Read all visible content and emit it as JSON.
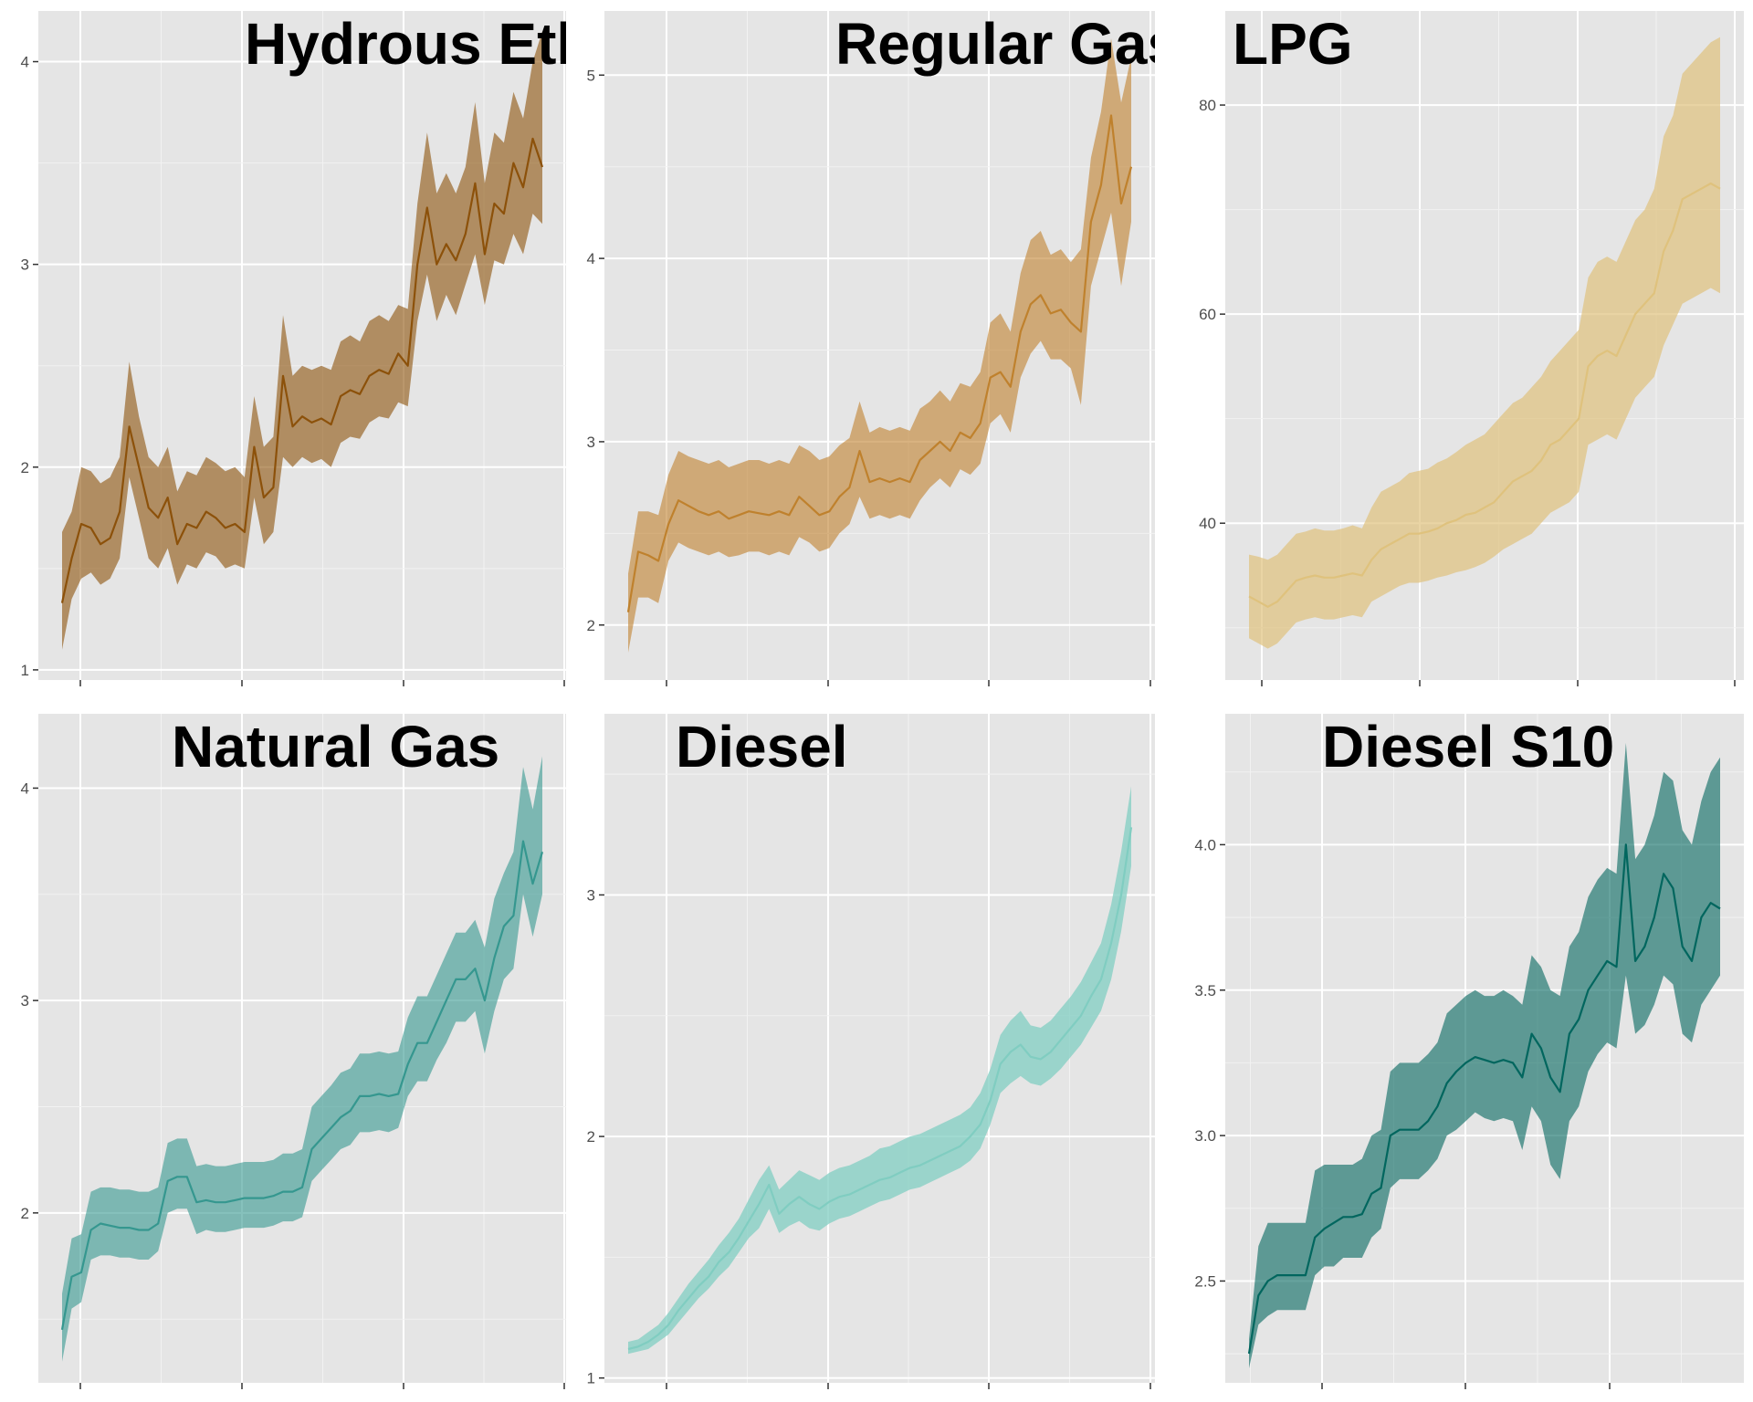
{
  "chart_data": [
    {
      "type": "area",
      "title": "Hydrous Ethanol",
      "color": "#8c510a",
      "fill_opacity": 0.6,
      "x": [
        0,
        0.02,
        0.04,
        0.06,
        0.08,
        0.1,
        0.12,
        0.14,
        0.16,
        0.18,
        0.2,
        0.22,
        0.24,
        0.26,
        0.28,
        0.3,
        0.32,
        0.34,
        0.36,
        0.38,
        0.4,
        0.42,
        0.44,
        0.46,
        0.48,
        0.5,
        0.52,
        0.54,
        0.56,
        0.58,
        0.6,
        0.62,
        0.64,
        0.66,
        0.68,
        0.7,
        0.72,
        0.74,
        0.76,
        0.78,
        0.8,
        0.82,
        0.84,
        0.86,
        0.88,
        0.9,
        0.92,
        0.94,
        0.96,
        0.98,
        1.0
      ],
      "y": [
        1.33,
        1.55,
        1.72,
        1.7,
        1.62,
        1.65,
        1.78,
        2.2,
        2.0,
        1.8,
        1.75,
        1.85,
        1.62,
        1.72,
        1.7,
        1.78,
        1.75,
        1.7,
        1.72,
        1.68,
        2.1,
        1.85,
        1.9,
        2.45,
        2.2,
        2.25,
        2.22,
        2.24,
        2.21,
        2.35,
        2.38,
        2.36,
        2.45,
        2.48,
        2.46,
        2.56,
        2.5,
        3.0,
        3.28,
        3.0,
        3.1,
        3.02,
        3.15,
        3.4,
        3.05,
        3.3,
        3.25,
        3.5,
        3.38,
        3.62,
        3.48
      ],
      "lower": [
        1.1,
        1.35,
        1.45,
        1.48,
        1.42,
        1.45,
        1.55,
        1.95,
        1.75,
        1.55,
        1.5,
        1.6,
        1.42,
        1.52,
        1.5,
        1.58,
        1.56,
        1.5,
        1.52,
        1.5,
        1.85,
        1.62,
        1.68,
        2.05,
        2.0,
        2.05,
        2.02,
        2.04,
        2.0,
        2.12,
        2.15,
        2.14,
        2.22,
        2.25,
        2.24,
        2.32,
        2.3,
        2.72,
        2.95,
        2.72,
        2.85,
        2.75,
        2.9,
        3.05,
        2.8,
        3.02,
        3.0,
        3.15,
        3.05,
        3.25,
        3.2
      ],
      "upper": [
        1.68,
        1.78,
        2.0,
        1.98,
        1.92,
        1.95,
        2.05,
        2.52,
        2.25,
        2.05,
        2.0,
        2.1,
        1.88,
        1.98,
        1.96,
        2.05,
        2.02,
        1.98,
        2.0,
        1.95,
        2.35,
        2.1,
        2.15,
        2.75,
        2.45,
        2.5,
        2.48,
        2.5,
        2.48,
        2.62,
        2.65,
        2.62,
        2.72,
        2.75,
        2.72,
        2.8,
        2.78,
        3.3,
        3.65,
        3.35,
        3.45,
        3.35,
        3.48,
        3.8,
        3.4,
        3.65,
        3.6,
        3.85,
        3.72,
        4.0,
        4.15
      ],
      "yticks": [
        1,
        2,
        3,
        4
      ],
      "ylim": [
        0.95,
        4.25
      ],
      "x_tick_count": 4,
      "grid": true
    },
    {
      "type": "area",
      "title": "Regular Gasoline",
      "color": "#bf812d",
      "fill_opacity": 0.6,
      "x": [
        0,
        0.02,
        0.04,
        0.06,
        0.08,
        0.1,
        0.12,
        0.14,
        0.16,
        0.18,
        0.2,
        0.22,
        0.24,
        0.26,
        0.28,
        0.3,
        0.32,
        0.34,
        0.36,
        0.38,
        0.4,
        0.42,
        0.44,
        0.46,
        0.48,
        0.5,
        0.52,
        0.54,
        0.56,
        0.58,
        0.6,
        0.62,
        0.64,
        0.66,
        0.68,
        0.7,
        0.72,
        0.74,
        0.76,
        0.78,
        0.8,
        0.82,
        0.84,
        0.86,
        0.88,
        0.9,
        0.92,
        0.94,
        0.96,
        0.98,
        1.0
      ],
      "y": [
        2.07,
        2.4,
        2.38,
        2.35,
        2.55,
        2.68,
        2.65,
        2.62,
        2.6,
        2.62,
        2.58,
        2.6,
        2.62,
        2.61,
        2.6,
        2.62,
        2.6,
        2.7,
        2.65,
        2.6,
        2.62,
        2.7,
        2.75,
        2.95,
        2.78,
        2.8,
        2.78,
        2.8,
        2.78,
        2.9,
        2.95,
        3.0,
        2.95,
        3.05,
        3.02,
        3.1,
        3.35,
        3.38,
        3.3,
        3.6,
        3.75,
        3.8,
        3.7,
        3.72,
        3.65,
        3.6,
        4.2,
        4.4,
        4.78,
        4.3,
        4.5
      ],
      "lower": [
        1.85,
        2.15,
        2.15,
        2.12,
        2.35,
        2.45,
        2.42,
        2.4,
        2.38,
        2.4,
        2.37,
        2.38,
        2.4,
        2.4,
        2.38,
        2.4,
        2.38,
        2.48,
        2.45,
        2.4,
        2.42,
        2.5,
        2.55,
        2.7,
        2.58,
        2.6,
        2.58,
        2.6,
        2.58,
        2.68,
        2.75,
        2.8,
        2.75,
        2.85,
        2.82,
        2.88,
        3.1,
        3.15,
        3.05,
        3.35,
        3.48,
        3.55,
        3.45,
        3.45,
        3.4,
        3.2,
        3.85,
        4.05,
        4.25,
        3.85,
        4.2
      ],
      "upper": [
        2.28,
        2.62,
        2.62,
        2.6,
        2.82,
        2.95,
        2.92,
        2.9,
        2.88,
        2.9,
        2.86,
        2.88,
        2.9,
        2.9,
        2.88,
        2.9,
        2.88,
        2.98,
        2.95,
        2.9,
        2.92,
        2.98,
        3.02,
        3.22,
        3.05,
        3.08,
        3.06,
        3.08,
        3.06,
        3.18,
        3.22,
        3.28,
        3.22,
        3.32,
        3.3,
        3.38,
        3.65,
        3.7,
        3.6,
        3.92,
        4.1,
        4.15,
        4.02,
        4.05,
        3.98,
        4.05,
        4.55,
        4.8,
        5.2,
        4.85,
        5.1
      ],
      "yticks": [
        2,
        3,
        4,
        5
      ],
      "ylim": [
        1.7,
        5.35
      ],
      "x_tick_count": 4,
      "grid": true
    },
    {
      "type": "area",
      "title": "LPG",
      "color": "#dfc27d",
      "fill_opacity": 0.7,
      "x": [
        0,
        0.02,
        0.04,
        0.06,
        0.08,
        0.1,
        0.12,
        0.14,
        0.16,
        0.18,
        0.2,
        0.22,
        0.24,
        0.26,
        0.28,
        0.3,
        0.32,
        0.34,
        0.36,
        0.38,
        0.4,
        0.42,
        0.44,
        0.46,
        0.48,
        0.5,
        0.52,
        0.54,
        0.56,
        0.58,
        0.6,
        0.62,
        0.64,
        0.66,
        0.68,
        0.7,
        0.72,
        0.74,
        0.76,
        0.78,
        0.8,
        0.82,
        0.84,
        0.86,
        0.88,
        0.9,
        0.92,
        0.94,
        0.96,
        0.98,
        1.0
      ],
      "y": [
        33.0,
        32.5,
        32.0,
        32.5,
        33.5,
        34.5,
        34.8,
        35.0,
        34.8,
        34.8,
        35.0,
        35.2,
        35.0,
        36.5,
        37.5,
        38.0,
        38.5,
        39.0,
        39.0,
        39.2,
        39.5,
        40.0,
        40.3,
        40.8,
        41.0,
        41.5,
        42.0,
        43.0,
        44.0,
        44.5,
        45.0,
        46.0,
        47.5,
        48.0,
        49.0,
        50.0,
        55.0,
        56.0,
        56.5,
        56.0,
        58.0,
        60.0,
        61.0,
        62.0,
        66.0,
        68.0,
        71.0,
        71.5,
        72.0,
        72.5,
        72.0
      ],
      "lower": [
        29.0,
        28.5,
        28.0,
        28.5,
        29.5,
        30.5,
        30.8,
        31.0,
        30.8,
        30.8,
        31.0,
        31.2,
        31.0,
        32.5,
        33.0,
        33.5,
        34.0,
        34.3,
        34.3,
        34.5,
        34.8,
        35.0,
        35.3,
        35.5,
        35.8,
        36.2,
        36.8,
        37.5,
        38.0,
        38.5,
        39.0,
        40.0,
        41.0,
        41.5,
        42.0,
        43.0,
        47.5,
        48.0,
        48.5,
        48.0,
        50.0,
        52.0,
        53.0,
        54.0,
        57.0,
        59.0,
        61.0,
        61.5,
        62.0,
        62.5,
        62.0
      ],
      "upper": [
        37.0,
        36.8,
        36.5,
        37.0,
        38.0,
        39.0,
        39.2,
        39.5,
        39.3,
        39.3,
        39.5,
        39.8,
        39.5,
        41.5,
        43.0,
        43.5,
        44.0,
        44.8,
        45.0,
        45.2,
        45.8,
        46.2,
        46.8,
        47.5,
        48.0,
        48.5,
        49.5,
        50.5,
        51.5,
        52.0,
        53.0,
        54.0,
        55.5,
        56.5,
        57.5,
        58.5,
        63.5,
        65.0,
        65.5,
        65.0,
        67.0,
        69.0,
        70.0,
        72.0,
        77.0,
        79.0,
        83.0,
        84.0,
        85.0,
        86.0,
        86.5
      ],
      "yticks": [
        40,
        60,
        80
      ],
      "ylim": [
        25.0,
        89.0
      ],
      "x_tick_count": 4,
      "grid": true
    },
    {
      "type": "area",
      "title": "Natural Gas",
      "color": "#35978f",
      "fill_opacity": 0.6,
      "x": [
        0,
        0.02,
        0.04,
        0.06,
        0.08,
        0.1,
        0.12,
        0.14,
        0.16,
        0.18,
        0.2,
        0.22,
        0.24,
        0.26,
        0.28,
        0.3,
        0.32,
        0.34,
        0.36,
        0.38,
        0.4,
        0.42,
        0.44,
        0.46,
        0.48,
        0.5,
        0.52,
        0.54,
        0.56,
        0.58,
        0.6,
        0.62,
        0.64,
        0.66,
        0.68,
        0.7,
        0.72,
        0.74,
        0.76,
        0.78,
        0.8,
        0.82,
        0.84,
        0.86,
        0.88,
        0.9,
        0.92,
        0.94,
        0.96,
        0.98,
        1.0
      ],
      "y": [
        1.45,
        1.7,
        1.72,
        1.92,
        1.95,
        1.94,
        1.93,
        1.93,
        1.92,
        1.92,
        1.95,
        2.15,
        2.17,
        2.17,
        2.05,
        2.06,
        2.05,
        2.05,
        2.06,
        2.07,
        2.07,
        2.07,
        2.08,
        2.1,
        2.1,
        2.12,
        2.3,
        2.35,
        2.4,
        2.45,
        2.48,
        2.55,
        2.55,
        2.56,
        2.55,
        2.56,
        2.7,
        2.8,
        2.8,
        2.9,
        3.0,
        3.1,
        3.1,
        3.15,
        3.0,
        3.2,
        3.35,
        3.4,
        3.75,
        3.55,
        3.7
      ],
      "lower": [
        1.3,
        1.55,
        1.58,
        1.78,
        1.8,
        1.8,
        1.79,
        1.79,
        1.78,
        1.78,
        1.82,
        2.0,
        2.02,
        2.02,
        1.9,
        1.92,
        1.91,
        1.91,
        1.92,
        1.93,
        1.93,
        1.93,
        1.94,
        1.96,
        1.96,
        1.98,
        2.15,
        2.2,
        2.25,
        2.3,
        2.32,
        2.38,
        2.38,
        2.39,
        2.38,
        2.4,
        2.55,
        2.62,
        2.62,
        2.72,
        2.8,
        2.9,
        2.9,
        2.95,
        2.75,
        2.95,
        3.1,
        3.15,
        3.5,
        3.3,
        3.5
      ],
      "upper": [
        1.62,
        1.88,
        1.9,
        2.1,
        2.12,
        2.12,
        2.11,
        2.11,
        2.1,
        2.1,
        2.12,
        2.33,
        2.35,
        2.35,
        2.22,
        2.23,
        2.22,
        2.22,
        2.23,
        2.24,
        2.24,
        2.24,
        2.25,
        2.28,
        2.28,
        2.3,
        2.5,
        2.55,
        2.6,
        2.66,
        2.68,
        2.75,
        2.75,
        2.76,
        2.75,
        2.76,
        2.92,
        3.02,
        3.02,
        3.12,
        3.22,
        3.32,
        3.32,
        3.38,
        3.25,
        3.48,
        3.6,
        3.7,
        4.1,
        3.9,
        4.15
      ],
      "yticks": [
        2,
        3,
        4
      ],
      "ylim": [
        1.2,
        4.35
      ],
      "x_tick_count": 4,
      "grid": true
    },
    {
      "type": "area",
      "title": "Diesel",
      "color": "#80cdc1",
      "fill_opacity": 0.75,
      "x": [
        0,
        0.02,
        0.04,
        0.06,
        0.08,
        0.1,
        0.12,
        0.14,
        0.16,
        0.18,
        0.2,
        0.22,
        0.24,
        0.26,
        0.28,
        0.3,
        0.32,
        0.34,
        0.36,
        0.38,
        0.4,
        0.42,
        0.44,
        0.46,
        0.48,
        0.5,
        0.52,
        0.54,
        0.56,
        0.58,
        0.6,
        0.62,
        0.64,
        0.66,
        0.68,
        0.7,
        0.72,
        0.74,
        0.76,
        0.78,
        0.8,
        0.82,
        0.84,
        0.86,
        0.88,
        0.9,
        0.92,
        0.94,
        0.96,
        0.98,
        1.0
      ],
      "y": [
        1.12,
        1.13,
        1.15,
        1.18,
        1.22,
        1.28,
        1.33,
        1.38,
        1.42,
        1.48,
        1.52,
        1.58,
        1.65,
        1.72,
        1.8,
        1.68,
        1.72,
        1.75,
        1.72,
        1.7,
        1.73,
        1.75,
        1.76,
        1.78,
        1.8,
        1.82,
        1.83,
        1.85,
        1.87,
        1.88,
        1.9,
        1.92,
        1.94,
        1.96,
        2.0,
        2.05,
        2.15,
        2.3,
        2.35,
        2.38,
        2.33,
        2.32,
        2.35,
        2.4,
        2.45,
        2.5,
        2.58,
        2.65,
        2.8,
        3.0,
        3.28
      ],
      "lower": [
        1.1,
        1.11,
        1.12,
        1.15,
        1.18,
        1.23,
        1.28,
        1.33,
        1.37,
        1.42,
        1.46,
        1.52,
        1.58,
        1.62,
        1.7,
        1.6,
        1.63,
        1.65,
        1.62,
        1.61,
        1.64,
        1.66,
        1.67,
        1.69,
        1.71,
        1.73,
        1.74,
        1.76,
        1.78,
        1.79,
        1.81,
        1.83,
        1.85,
        1.87,
        1.9,
        1.95,
        2.05,
        2.18,
        2.22,
        2.25,
        2.22,
        2.21,
        2.24,
        2.28,
        2.33,
        2.38,
        2.45,
        2.52,
        2.65,
        2.85,
        3.12
      ],
      "upper": [
        1.15,
        1.16,
        1.19,
        1.22,
        1.27,
        1.33,
        1.39,
        1.44,
        1.49,
        1.55,
        1.6,
        1.66,
        1.74,
        1.82,
        1.88,
        1.78,
        1.82,
        1.86,
        1.84,
        1.82,
        1.85,
        1.87,
        1.88,
        1.9,
        1.92,
        1.95,
        1.96,
        1.98,
        2.0,
        2.01,
        2.03,
        2.05,
        2.07,
        2.09,
        2.12,
        2.18,
        2.28,
        2.42,
        2.48,
        2.52,
        2.46,
        2.45,
        2.48,
        2.53,
        2.58,
        2.64,
        2.72,
        2.8,
        2.96,
        3.18,
        3.45
      ],
      "yticks": [
        1,
        2,
        3
      ],
      "ylim": [
        0.98,
        3.75
      ],
      "x_tick_count": 4,
      "grid": true
    },
    {
      "type": "area",
      "title": "Diesel S10",
      "color": "#01665e",
      "fill_opacity": 0.6,
      "x": [
        0,
        0.02,
        0.04,
        0.06,
        0.08,
        0.1,
        0.12,
        0.14,
        0.16,
        0.18,
        0.2,
        0.22,
        0.24,
        0.26,
        0.28,
        0.3,
        0.32,
        0.34,
        0.36,
        0.38,
        0.4,
        0.42,
        0.44,
        0.46,
        0.48,
        0.5,
        0.52,
        0.54,
        0.56,
        0.58,
        0.6,
        0.62,
        0.64,
        0.66,
        0.68,
        0.7,
        0.72,
        0.74,
        0.76,
        0.78,
        0.8,
        0.82,
        0.84,
        0.86,
        0.88,
        0.9,
        0.92,
        0.94,
        0.96,
        0.98,
        1.0
      ],
      "y": [
        2.25,
        2.45,
        2.5,
        2.52,
        2.52,
        2.52,
        2.52,
        2.65,
        2.68,
        2.7,
        2.72,
        2.72,
        2.73,
        2.8,
        2.82,
        3.0,
        3.02,
        3.02,
        3.02,
        3.05,
        3.1,
        3.18,
        3.22,
        3.25,
        3.27,
        3.26,
        3.25,
        3.26,
        3.25,
        3.2,
        3.35,
        3.3,
        3.2,
        3.15,
        3.35,
        3.4,
        3.5,
        3.55,
        3.6,
        3.58,
        4.0,
        3.6,
        3.65,
        3.75,
        3.9,
        3.85,
        3.65,
        3.6,
        3.75,
        3.8,
        3.78
      ],
      "lower": [
        2.2,
        2.35,
        2.38,
        2.4,
        2.4,
        2.4,
        2.4,
        2.52,
        2.55,
        2.55,
        2.58,
        2.58,
        2.58,
        2.65,
        2.68,
        2.82,
        2.85,
        2.85,
        2.85,
        2.88,
        2.92,
        3.0,
        3.02,
        3.05,
        3.08,
        3.06,
        3.05,
        3.06,
        3.05,
        2.95,
        3.1,
        3.05,
        2.9,
        2.85,
        3.05,
        3.1,
        3.22,
        3.28,
        3.32,
        3.3,
        3.55,
        3.35,
        3.38,
        3.45,
        3.55,
        3.52,
        3.35,
        3.32,
        3.45,
        3.5,
        3.55
      ],
      "upper": [
        2.3,
        2.62,
        2.7,
        2.7,
        2.7,
        2.7,
        2.7,
        2.88,
        2.9,
        2.9,
        2.9,
        2.9,
        2.92,
        3.0,
        3.02,
        3.22,
        3.25,
        3.25,
        3.25,
        3.28,
        3.32,
        3.42,
        3.45,
        3.48,
        3.5,
        3.48,
        3.48,
        3.5,
        3.48,
        3.45,
        3.62,
        3.58,
        3.5,
        3.48,
        3.65,
        3.7,
        3.82,
        3.88,
        3.92,
        3.9,
        4.35,
        3.95,
        4.0,
        4.1,
        4.25,
        4.22,
        4.05,
        4.0,
        4.15,
        4.25,
        4.3
      ],
      "yticks": [
        2.5,
        3.0,
        3.5,
        4.0
      ],
      "ylim": [
        2.15,
        4.45
      ],
      "ytick_format": "1dp",
      "x_tick_count": 4,
      "grid": true
    }
  ]
}
